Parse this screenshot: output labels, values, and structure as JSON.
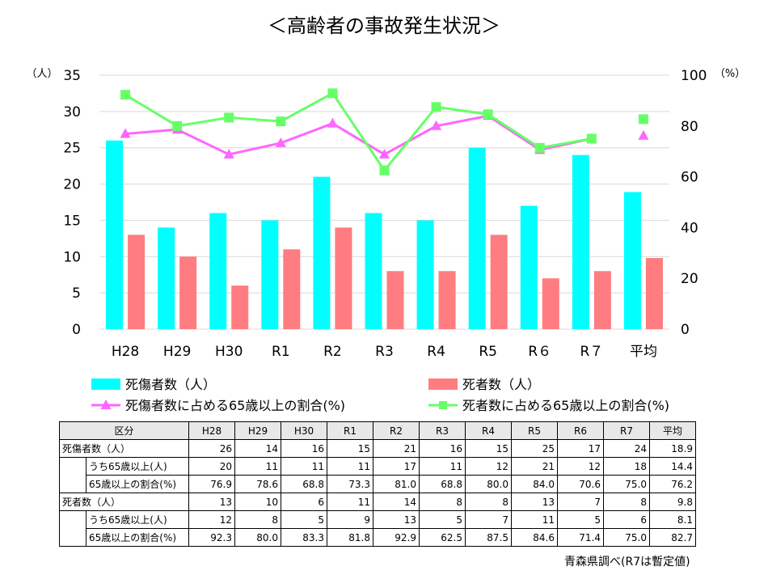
{
  "source_note": "青森県調べ(R7は暫定値)",
  "colors": {
    "casualties": "#00ffff",
    "deaths": "#ff7c80",
    "casualty_ratio": "#ff66ff",
    "death_ratio": "#66ff66"
  },
  "chart_data": {
    "type": "bar",
    "title": "＜高齢者の事故発生状況＞",
    "categories": [
      "H28",
      "H29",
      "H30",
      "R1",
      "R2",
      "R3",
      "R4",
      "R5",
      "R６",
      "R７",
      "平均"
    ],
    "y_left": {
      "unit": "（人）",
      "min": 0,
      "max": 35,
      "ticks": [
        0,
        5,
        10,
        15,
        20,
        25,
        30,
        35
      ]
    },
    "y_right": {
      "unit": "（%）",
      "min": 0,
      "max": 100,
      "ticks": [
        0,
        20,
        40,
        60,
        80,
        100
      ]
    },
    "series": [
      {
        "name": "死傷者数（人）",
        "type": "bar",
        "axis": "left",
        "color": "#00ffff",
        "values": [
          26,
          14,
          16,
          15,
          21,
          16,
          15,
          25,
          17,
          24,
          18.9
        ]
      },
      {
        "name": "死者数（人）",
        "type": "bar",
        "axis": "left",
        "color": "#ff7c80",
        "values": [
          13,
          10,
          6,
          11,
          14,
          8,
          8,
          13,
          7,
          8,
          9.8
        ]
      },
      {
        "name": "死傷者数に占める65歳以上の割合(%)",
        "type": "line",
        "marker": "triangle",
        "axis": "right",
        "color": "#ff66ff",
        "values": [
          76.9,
          78.6,
          68.8,
          73.3,
          81.0,
          68.8,
          80.0,
          84.0,
          70.6,
          75.0,
          76.2
        ],
        "connect_last": false
      },
      {
        "name": "死者数に占める65歳以上の割合(%)",
        "type": "line",
        "marker": "square",
        "axis": "right",
        "color": "#66ff66",
        "values": [
          92.3,
          80.0,
          83.3,
          81.8,
          92.9,
          62.5,
          87.5,
          84.6,
          71.4,
          75.0,
          82.7
        ],
        "connect_last": false
      }
    ]
  },
  "table": {
    "header": [
      "区分",
      "H28",
      "H29",
      "H30",
      "R1",
      "R2",
      "R3",
      "R4",
      "R5",
      "R6",
      "R7",
      "平均"
    ],
    "groups": [
      {
        "label": "死傷者数（人）",
        "total": [
          "26",
          "14",
          "16",
          "15",
          "21",
          "16",
          "15",
          "25",
          "17",
          "24",
          "18.9"
        ],
        "rows": [
          {
            "label": "うち65歳以上(人)",
            "values": [
              "20",
              "11",
              "11",
              "11",
              "17",
              "11",
              "12",
              "21",
              "12",
              "18",
              "14.4"
            ]
          },
          {
            "label": "65歳以上の割合(%)",
            "values": [
              "76.9",
              "78.6",
              "68.8",
              "73.3",
              "81.0",
              "68.8",
              "80.0",
              "84.0",
              "70.6",
              "75.0",
              "76.2"
            ]
          }
        ]
      },
      {
        "label": "死者数（人）",
        "total": [
          "13",
          "10",
          "6",
          "11",
          "14",
          "8",
          "8",
          "13",
          "7",
          "8",
          "9.8"
        ],
        "rows": [
          {
            "label": "うち65歳以上(人)",
            "values": [
              "12",
              "8",
              "5",
              "9",
              "13",
              "5",
              "7",
              "11",
              "5",
              "6",
              "8.1"
            ]
          },
          {
            "label": "65歳以上の割合(%)",
            "values": [
              "92.3",
              "80.0",
              "83.3",
              "81.8",
              "92.9",
              "62.5",
              "87.5",
              "84.6",
              "71.4",
              "75.0",
              "82.7"
            ]
          }
        ]
      }
    ]
  }
}
